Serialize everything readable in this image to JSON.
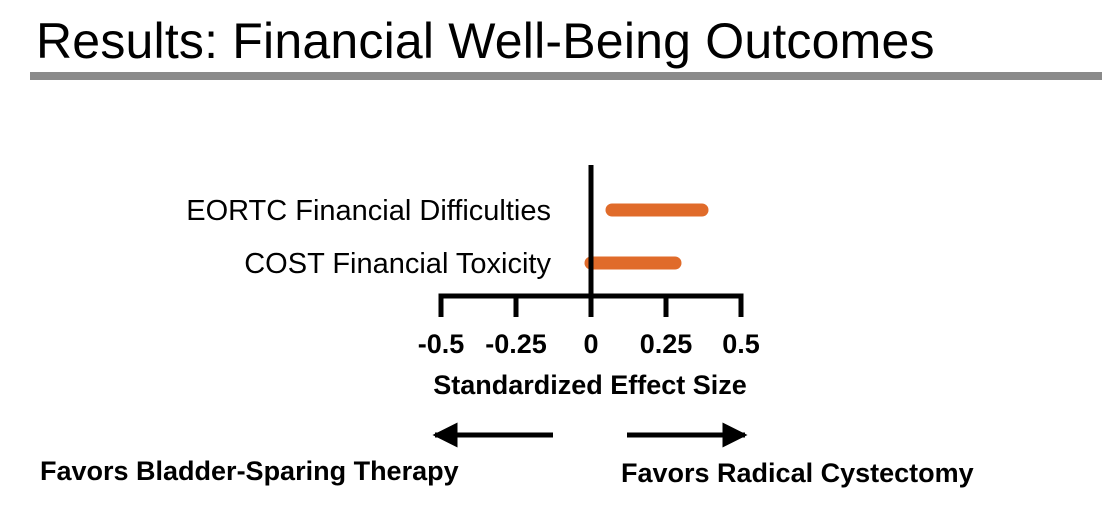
{
  "slide": {
    "title": "Results: Financial Well-Being Outcomes"
  },
  "chart_data": {
    "type": "forest",
    "outcomes": [
      {
        "label": "EORTC Financial Difficulties",
        "ci_lower": 0.07,
        "ci_upper": 0.37
      },
      {
        "label": "COST Financial Toxicity",
        "ci_lower": 0.0,
        "ci_upper": 0.28
      }
    ],
    "xlabel": "Standardized Effect Size",
    "x_ticks": [
      -0.5,
      -0.25,
      0,
      0.25,
      0.5
    ],
    "x_tick_labels": [
      "-0.5",
      "-0.25",
      "0",
      "0.25",
      "0.5"
    ],
    "xlim": [
      -0.5,
      0.5
    ],
    "bar_color": "#e06b2a",
    "direction_left": "Favors Bladder-Sparing Therapy",
    "direction_right": "Favors Radical Cystectomy"
  }
}
